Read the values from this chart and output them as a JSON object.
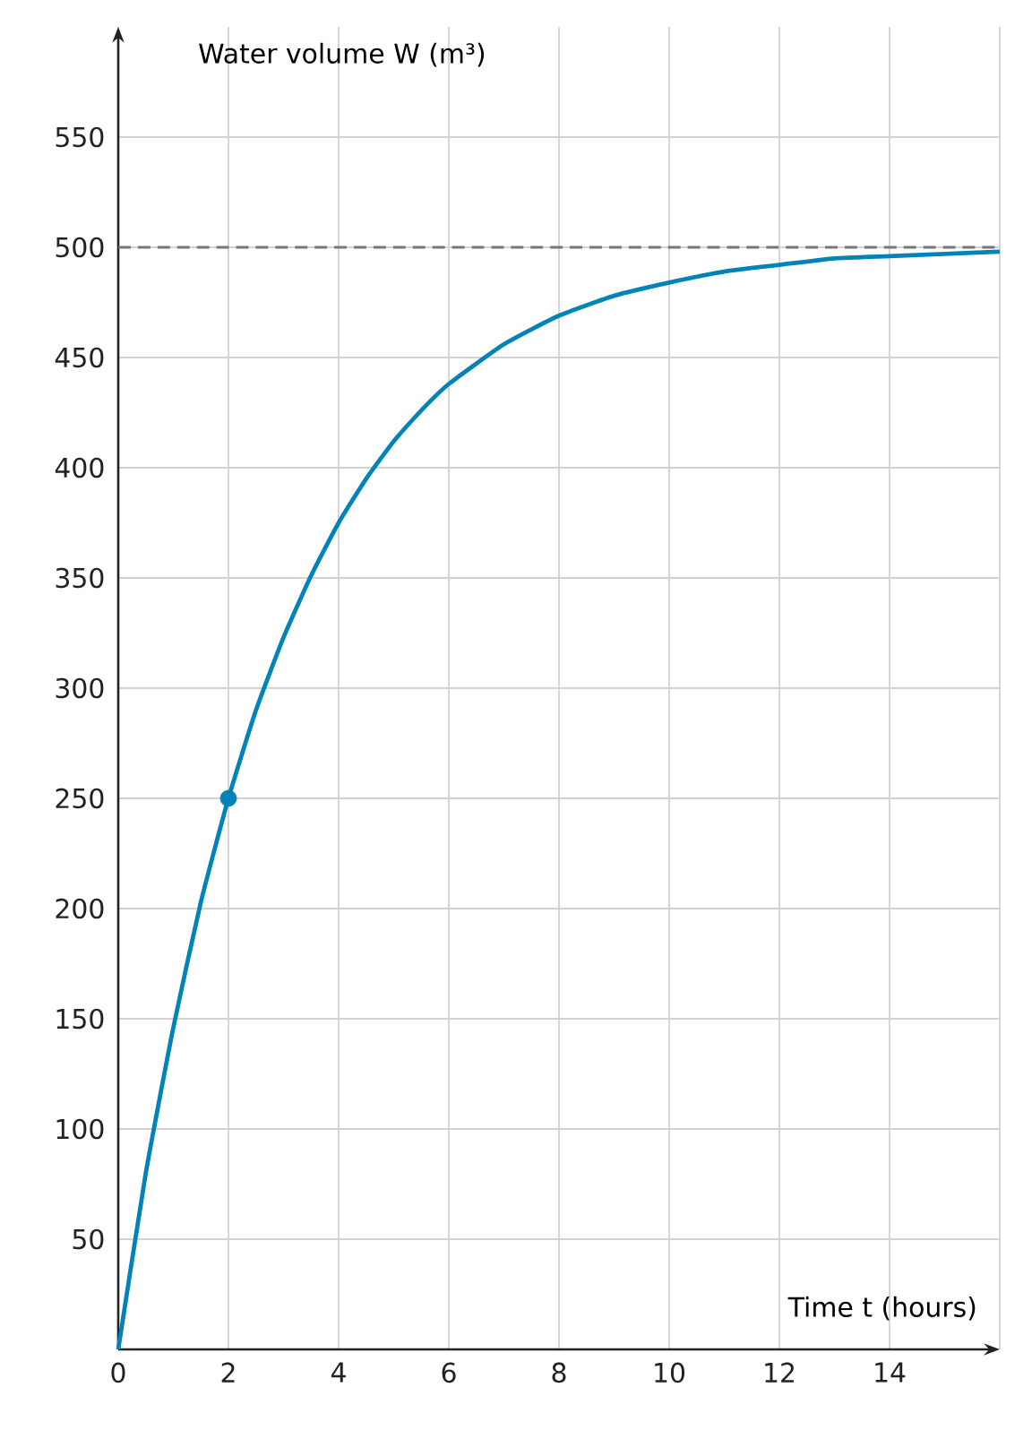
{
  "chart_data": {
    "type": "line",
    "xlabel": "Time t (hours)",
    "ylabel": "Water volume W (m³)",
    "xlim": [
      0,
      16
    ],
    "ylim": [
      0,
      600
    ],
    "xticks": [
      {
        "value": 0,
        "label": "0"
      },
      2,
      4,
      6,
      8,
      10,
      12,
      14,
      {
        "value": 16,
        "label": null
      }
    ],
    "yticks": [
      50,
      100,
      150,
      200,
      250,
      300,
      350,
      400,
      450,
      500,
      550
    ],
    "grid": true,
    "series": [
      {
        "color": "#0083b9",
        "line_style": "solid",
        "marker": "none",
        "x": [
          0,
          0.5,
          1,
          1.5,
          2,
          2.5,
          3,
          3.5,
          4,
          4.5,
          5,
          5.5,
          6,
          7,
          8,
          9,
          10,
          11,
          12,
          13,
          14,
          15,
          16
        ],
        "values": [
          0,
          80,
          146,
          203,
          250,
          290,
          323,
          351,
          375,
          395,
          412,
          426,
          438,
          456,
          469,
          478,
          484,
          489,
          492,
          495,
          496,
          497,
          498
        ]
      },
      {
        "type": "scatter",
        "color": "#0083b9",
        "marker": "circle",
        "x": [
          2
        ],
        "values": [
          250
        ]
      }
    ],
    "ref_lines": [
      {
        "axis": "y",
        "value": 500,
        "color": "#777777",
        "line_style": "dashed"
      }
    ]
  }
}
